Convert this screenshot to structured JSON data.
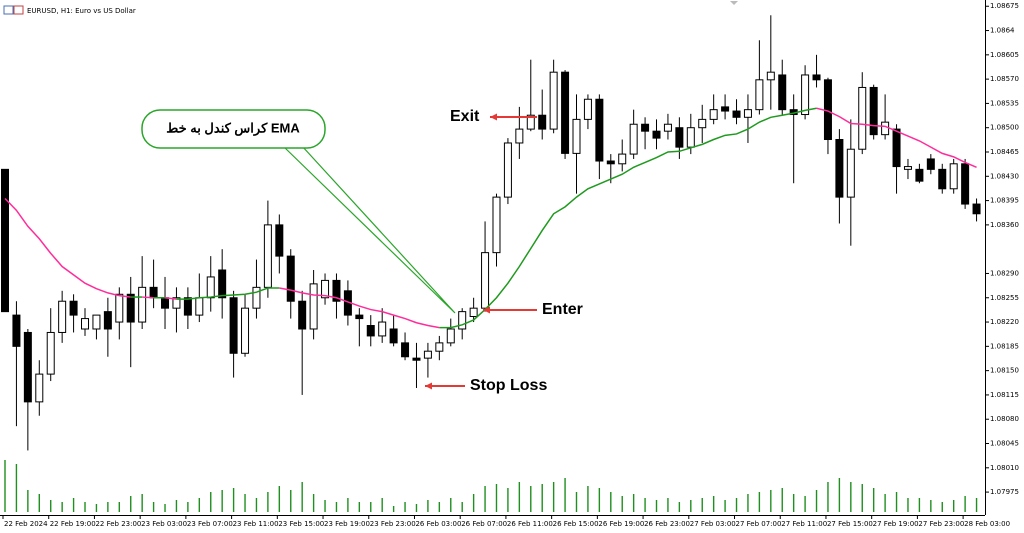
{
  "chart_data": {
    "type": "candlestick",
    "title": "EURUSD, H1:  Euro vs US Dollar",
    "categories": [
      "22 Feb 2024",
      null,
      null,
      null,
      "22 Feb 19:00",
      null,
      null,
      null,
      "22 Feb 23:00",
      null,
      null,
      null,
      "23 Feb 03:00",
      null,
      null,
      null,
      "23 Feb 07:00",
      null,
      null,
      null,
      "23 Feb 11:00",
      null,
      null,
      null,
      "23 Feb 15:00",
      null,
      null,
      null,
      "23 Feb 19:00",
      null,
      null,
      null,
      "23 Feb 23:00",
      null,
      null,
      null,
      "26 Feb 03:00",
      null,
      null,
      null,
      "26 Feb 07:00",
      null,
      null,
      null,
      "26 Feb 11:00",
      null,
      null,
      null,
      "26 Feb 15:00",
      null,
      null,
      null,
      "26 Feb 19:00",
      null,
      null,
      null,
      "26 Feb 23:00",
      null,
      null,
      null,
      "27 Feb 03:00",
      null,
      null,
      null,
      "27 Feb 07:00",
      null,
      null,
      null,
      "27 Feb 11:00",
      null,
      null,
      null,
      "27 Feb 15:00",
      null,
      null,
      null,
      "27 Feb 19:00",
      null,
      null,
      null,
      "27 Feb 23:00",
      null,
      null,
      null,
      "28 Feb 03:00",
      null
    ],
    "open": [
      1.0844,
      1.0823,
      1.08205,
      1.08105,
      1.08145,
      1.08205,
      1.0825,
      1.0821,
      1.0821,
      1.08235,
      1.0822,
      1.0826,
      1.0822,
      1.0827,
      1.08255,
      1.0824,
      1.08255,
      1.0823,
      1.08255,
      1.08295,
      1.08255,
      1.08175,
      1.0824,
      1.0827,
      1.0836,
      1.08315,
      1.0825,
      1.0821,
      1.08255,
      1.0828,
      1.08265,
      1.0823,
      1.08215,
      1.082,
      1.0821,
      1.0819,
      1.08168,
      1.08168,
      1.08178,
      1.0819,
      1.0821,
      1.08228,
      1.0824,
      1.0832,
      1.084,
      1.08478,
      1.08498,
      1.08518,
      1.08498,
      1.0858,
      1.08463,
      1.08512,
      1.08541,
      1.08452,
      1.08448,
      1.08462,
      1.08505,
      1.08495,
      1.08495,
      1.085,
      1.08472,
      1.085,
      1.08512,
      1.0853,
      1.08524,
      1.08515,
      1.08526,
      1.08569,
      1.08576,
      1.08526,
      1.08519,
      1.08576,
      1.08569,
      1.08483,
      1.084,
      1.08469,
      1.08558,
      1.0849,
      1.08498,
      1.0844,
      1.0844,
      1.08455,
      1.0844,
      1.08412,
      1.08448,
      1.0839
    ],
    "high": [
      1.0844,
      1.0825,
      1.0821,
      1.08165,
      1.0824,
      1.08265,
      1.0826,
      1.0824,
      1.0823,
      1.08255,
      1.0827,
      1.08285,
      1.08315,
      1.0831,
      1.08285,
      1.0827,
      1.0827,
      1.0829,
      1.08315,
      1.08325,
      1.08265,
      1.0826,
      1.0831,
      1.08395,
      1.08375,
      1.08325,
      1.08265,
      1.08295,
      1.0829,
      1.0829,
      1.0828,
      1.0824,
      1.0823,
      1.0824,
      1.0823,
      1.08205,
      1.0819,
      1.0819,
      1.082,
      1.08225,
      1.0824,
      1.08255,
      1.08365,
      1.08405,
      1.08485,
      1.0853,
      1.08598,
      1.08555,
      1.08598,
      1.08583,
      1.08548,
      1.08548,
      1.08548,
      1.08462,
      1.08483,
      1.08526,
      1.08515,
      1.08512,
      1.0852,
      1.08515,
      1.0852,
      1.08533,
      1.08548,
      1.08548,
      1.08541,
      1.08548,
      1.08626,
      1.08662,
      1.08598,
      1.08548,
      1.0859,
      1.08605,
      1.08572,
      1.08498,
      1.08512,
      1.0858,
      1.08562,
      1.08548,
      1.08505,
      1.08455,
      1.08448,
      1.08462,
      1.08448,
      1.08455,
      1.08455,
      1.08398
    ],
    "low": [
      1.08235,
      1.0807,
      1.08035,
      1.08085,
      1.08135,
      1.0819,
      1.08205,
      1.082,
      1.08195,
      1.0817,
      1.08195,
      1.08155,
      1.0821,
      1.0824,
      1.0821,
      1.08205,
      1.0821,
      1.0822,
      1.08235,
      1.08225,
      1.0814,
      1.0817,
      1.08225,
      1.08255,
      1.0829,
      1.08225,
      1.08115,
      1.08195,
      1.08245,
      1.08225,
      1.08215,
      1.08185,
      1.08185,
      1.0819,
      1.08185,
      1.08165,
      1.08125,
      1.0814,
      1.08165,
      1.08185,
      1.08195,
      1.0822,
      1.08235,
      1.083,
      1.0839,
      1.08455,
      1.08495,
      1.08483,
      1.08492,
      1.08455,
      1.08405,
      1.08498,
      1.08426,
      1.0842,
      1.08437,
      1.08455,
      1.08469,
      1.08469,
      1.08483,
      1.08455,
      1.08462,
      1.08478,
      1.08505,
      1.08512,
      1.08505,
      1.08478,
      1.08519,
      1.08526,
      1.08519,
      1.0842,
      1.08512,
      1.08558,
      1.08462,
      1.08362,
      1.0833,
      1.08462,
      1.08483,
      1.08483,
      1.08405,
      1.08426,
      1.0842,
      1.08433,
      1.08405,
      1.08405,
      1.08383,
      1.08365
    ],
    "close": [
      1.08235,
      1.08185,
      1.08105,
      1.08145,
      1.08205,
      1.0825,
      1.0823,
      1.08225,
      1.0823,
      1.0821,
      1.0826,
      1.0822,
      1.0827,
      1.08255,
      1.0824,
      1.08255,
      1.0823,
      1.08255,
      1.08285,
      1.08255,
      1.08175,
      1.0824,
      1.0827,
      1.0836,
      1.08315,
      1.0825,
      1.0821,
      1.08275,
      1.0828,
      1.0825,
      1.0823,
      1.08225,
      1.082,
      1.0822,
      1.0819,
      1.0817,
      1.08165,
      1.08178,
      1.0819,
      1.0821,
      1.08235,
      1.0824,
      1.0832,
      1.084,
      1.08478,
      1.08498,
      1.08518,
      1.08498,
      1.0858,
      1.08463,
      1.08512,
      1.08541,
      1.08452,
      1.08448,
      1.08462,
      1.08505,
      1.08495,
      1.08485,
      1.08505,
      1.08472,
      1.085,
      1.08512,
      1.08526,
      1.08524,
      1.08515,
      1.08526,
      1.08569,
      1.0858,
      1.08526,
      1.08519,
      1.08576,
      1.08569,
      1.08483,
      1.084,
      1.08469,
      1.08558,
      1.0849,
      1.08508,
      1.08444,
      1.08444,
      1.08423,
      1.0844,
      1.08412,
      1.08448,
      1.0839,
      1.08376
    ],
    "up_color": "#ffffff",
    "down_color": "#000000",
    "ema": {
      "values": [
        1.08398,
        1.08381,
        1.08358,
        1.0834,
        1.08319,
        1.083,
        1.08288,
        1.08276,
        1.08268,
        1.08262,
        1.08258,
        1.08256,
        1.08256,
        1.08255,
        1.08255,
        1.08253,
        1.08253,
        1.08255,
        1.08256,
        1.08258,
        1.08259,
        1.0826,
        1.08263,
        1.08269,
        1.08269,
        1.08266,
        1.08262,
        1.08259,
        1.08258,
        1.08255,
        1.08249,
        1.08243,
        1.08238,
        1.08235,
        1.0823,
        1.08225,
        1.08219,
        1.08215,
        1.08212,
        1.08212,
        1.08216,
        1.08223,
        1.08238,
        1.08255,
        1.08276,
        1.083,
        1.08326,
        1.08352,
        1.08376,
        1.08386,
        1.084,
        1.08412,
        1.08419,
        1.08426,
        1.08433,
        1.08443,
        1.0845,
        1.08457,
        1.08465,
        1.08466,
        1.08471,
        1.08476,
        1.08483,
        1.08489,
        1.08491,
        1.08498,
        1.08508,
        1.08515,
        1.08518,
        1.08521,
        1.08525,
        1.08528,
        1.08524,
        1.08516,
        1.08506,
        1.08505,
        1.08503,
        1.08502,
        1.08495,
        1.08488,
        1.08481,
        1.08472,
        1.08463,
        1.08458,
        1.0845,
        1.08443
      ],
      "up_color": "#1f9a1f",
      "down_color": "#ff2d9b"
    },
    "volume": {
      "values": [
        52,
        48,
        22,
        18,
        12,
        10,
        14,
        10,
        8,
        10,
        10,
        16,
        18,
        10,
        8,
        12,
        10,
        14,
        20,
        22,
        24,
        18,
        14,
        20,
        26,
        22,
        30,
        18,
        12,
        10,
        14,
        10,
        10,
        14,
        6,
        10,
        8,
        12,
        10,
        14,
        10,
        18,
        26,
        28,
        24,
        30,
        26,
        28,
        30,
        34,
        20,
        26,
        24,
        20,
        16,
        18,
        14,
        12,
        14,
        10,
        12,
        14,
        16,
        12,
        14,
        18,
        20,
        22,
        24,
        18,
        16,
        22,
        30,
        34,
        30,
        28,
        24,
        18,
        20,
        14,
        14,
        12,
        10,
        12,
        16,
        14
      ],
      "color": "#1f8f1f",
      "lim": [
        0,
        55
      ]
    },
    "ylim": [
      1.07942,
      1.08684
    ],
    "yticks": [
      1.08675,
      1.0864,
      1.08605,
      {
        "value": 1.0857,
        "label": "1.08570"
      },
      1.08535,
      {
        "value": 1.085,
        "label": "1.08500"
      },
      1.08465,
      {
        "value": 1.0843,
        "label": "1.08430"
      },
      1.08395,
      {
        "value": 1.0836,
        "label": "1.08360"
      },
      {
        "value": 1.0829,
        "label": "1.08290"
      },
      1.08255,
      {
        "value": 1.0822,
        "label": "1.08220"
      },
      1.08185,
      {
        "value": 1.0815,
        "label": "1.08150"
      },
      1.08115,
      {
        "value": 1.0808,
        "label": "1.08080"
      },
      1.08045,
      {
        "value": 1.0801,
        "label": "1.08010"
      },
      1.07975
    ],
    "annotations": [
      {
        "text": "کراس کندل به خط EMA",
        "color": "#111111",
        "border": "#2aa52a"
      },
      {
        "text": "Exit",
        "color": "#1f47d6",
        "arrow_color": "#e53935"
      },
      {
        "text": "Enter",
        "color": "#23a02b",
        "arrow_color": "#e53935"
      },
      {
        "text": "Stop Loss",
        "color": "#e8323c",
        "arrow_color": "#e53935"
      }
    ]
  }
}
